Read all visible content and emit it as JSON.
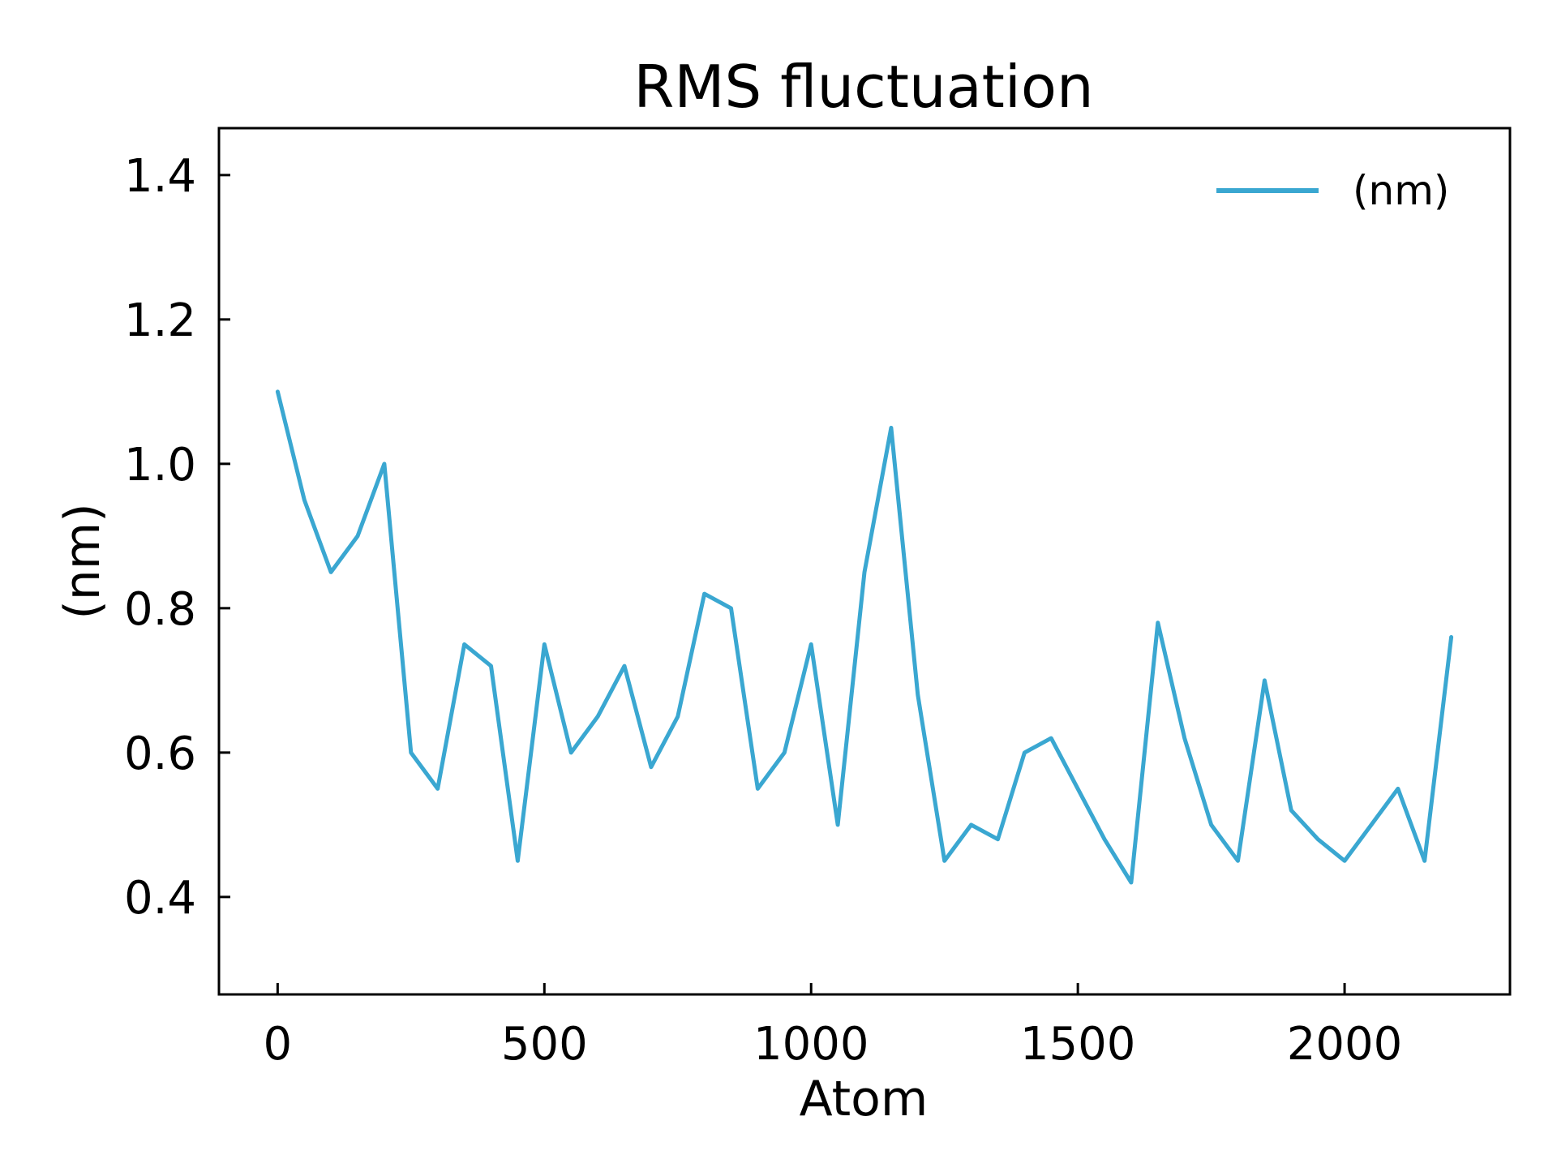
{
  "chart_data": {
    "type": "line",
    "title": "RMS fluctuation",
    "xlabel": "Atom",
    "ylabel": "(nm)",
    "xlim": [
      -110,
      2310
    ],
    "ylim": [
      0.265,
      1.465
    ],
    "xticks": [
      0,
      500,
      1000,
      1500,
      2000
    ],
    "xtick_labels": [
      "0",
      "500",
      "1000",
      "1500",
      "2000"
    ],
    "yticks": [
      0.4,
      0.6,
      0.8,
      1.0,
      1.2,
      1.4
    ],
    "ytick_labels": [
      "0.4",
      "0.6",
      "0.8",
      "1.0",
      "1.2",
      "1.4"
    ],
    "grid": false,
    "legend_position": "top-right",
    "series": [
      {
        "name": "(nm)",
        "color": "#3aa7d1",
        "x": [
          0,
          50,
          100,
          150,
          200,
          250,
          300,
          350,
          400,
          450,
          500,
          550,
          600,
          650,
          700,
          750,
          800,
          850,
          900,
          950,
          1000,
          1050,
          1100,
          1150,
          1200,
          1250,
          1300,
          1350,
          1400,
          1450,
          1500,
          1550,
          1600,
          1650,
          1700,
          1750,
          1800,
          1850,
          1900,
          1950,
          2000,
          2050,
          2100,
          2150,
          2200
        ],
        "y": [
          1.1,
          0.95,
          0.85,
          0.9,
          1.0,
          0.6,
          0.55,
          0.75,
          0.72,
          0.45,
          0.75,
          0.6,
          0.65,
          0.72,
          0.58,
          0.65,
          0.82,
          0.8,
          0.55,
          0.6,
          0.75,
          0.5,
          0.85,
          1.05,
          0.68,
          0.45,
          0.5,
          0.48,
          0.6,
          0.62,
          0.55,
          0.48,
          0.42,
          0.78,
          0.62,
          0.5,
          0.45,
          0.7,
          0.52,
          0.48,
          0.45,
          0.5,
          0.55,
          0.45,
          0.76
        ]
      }
    ]
  }
}
